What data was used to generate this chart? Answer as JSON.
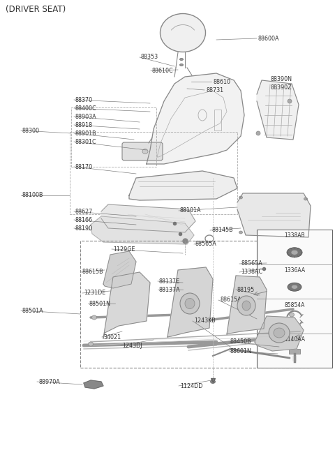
{
  "title": "(DRIVER SEAT)",
  "bg_color": "#ffffff",
  "text_color": "#333333",
  "line_color": "#555555",
  "label_fontsize": 5.8,
  "title_fontsize": 8.5,
  "figw": 4.8,
  "figh": 6.75,
  "dpi": 100
}
